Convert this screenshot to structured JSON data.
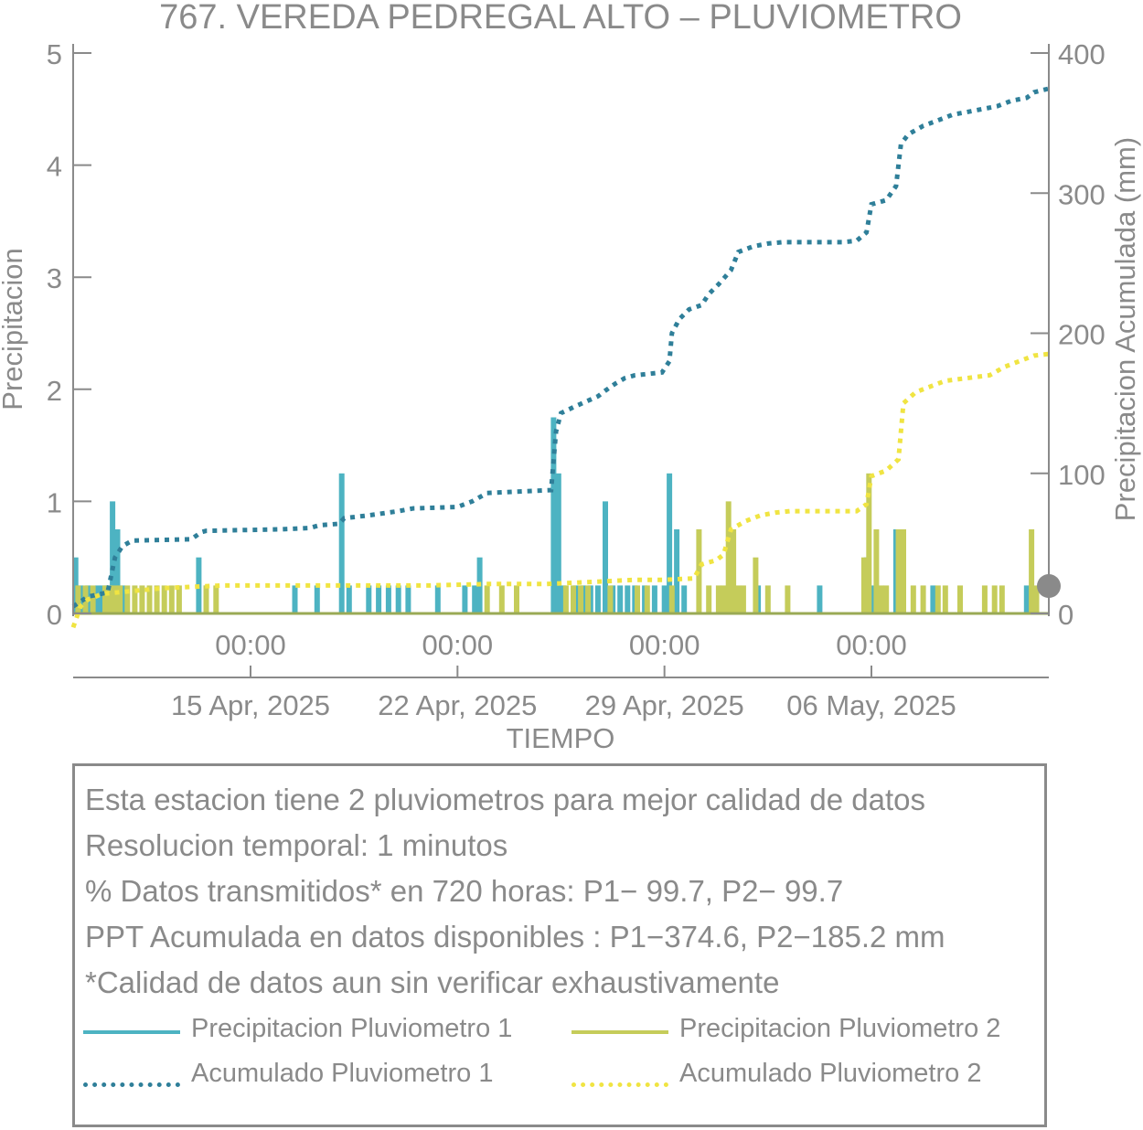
{
  "chart_data": {
    "type": "bar",
    "title": "767. VEREDA PEDREGAL ALTO – PLUVIOMETRO",
    "xlabel": "TIEMPO",
    "ylabel": "Precipitacion",
    "y2label": "Precipitacion Acumulada (mm)",
    "x_range": [
      "2025-04-09T00:00",
      "2025-05-12T00:00"
    ],
    "ylim": [
      0,
      5
    ],
    "y2lim": [
      0,
      400
    ],
    "y_ticks": [
      0,
      1,
      2,
      3,
      4,
      5
    ],
    "y2_ticks": [
      0,
      100,
      200,
      300,
      400
    ],
    "x_ticks": [
      {
        "date": "2025-04-15T00:00",
        "label": "00:00",
        "sublabel": "15 Apr, 2025"
      },
      {
        "date": "2025-04-22T00:00",
        "label": "00:00",
        "sublabel": "22 Apr, 2025"
      },
      {
        "date": "2025-04-29T00:00",
        "label": "00:00",
        "sublabel": "29 Apr, 2025"
      },
      {
        "date": "2025-05-06T00:00",
        "label": "00:00",
        "sublabel": "06 May, 2025"
      }
    ],
    "grid": false,
    "colors": {
      "p1_bar": "#4db3c2",
      "p2_bar": "#c5cc5a",
      "p1_cum": "#2f7f99",
      "p2_cum": "#f0e442",
      "axis": "#8a8a8a"
    },
    "series": [
      {
        "name": "Precipitacion Pluviometro 1",
        "kind": "bars",
        "axis": "left",
        "points": [
          [
            "2025-04-09T02:00",
            0.5
          ],
          [
            "2025-04-09T06:00",
            0.25
          ],
          [
            "2025-04-09T12:00",
            0.25
          ],
          [
            "2025-04-09T20:00",
            0.25
          ],
          [
            "2025-04-10T00:00",
            0.25
          ],
          [
            "2025-04-10T04:00",
            0.25
          ],
          [
            "2025-04-10T08:00",
            1.0
          ],
          [
            "2025-04-10T12:00",
            0.75
          ],
          [
            "2025-04-10T16:00",
            0.25
          ],
          [
            "2025-04-13T06:00",
            0.5
          ],
          [
            "2025-04-13T12:00",
            0.25
          ],
          [
            "2025-04-15T00:00",
            0.0
          ],
          [
            "2025-04-16T12:00",
            0.25
          ],
          [
            "2025-04-17T06:00",
            0.25
          ],
          [
            "2025-04-18T02:00",
            1.25
          ],
          [
            "2025-04-18T08:00",
            0.25
          ],
          [
            "2025-04-19T00:00",
            0.25
          ],
          [
            "2025-04-19T08:00",
            0.25
          ],
          [
            "2025-04-19T16:00",
            0.25
          ],
          [
            "2025-04-20T00:00",
            0.25
          ],
          [
            "2025-04-20T08:00",
            0.25
          ],
          [
            "2025-04-21T08:00",
            0.25
          ],
          [
            "2025-04-22T06:00",
            0.25
          ],
          [
            "2025-04-22T14:00",
            0.25
          ],
          [
            "2025-04-22T18:00",
            0.5
          ],
          [
            "2025-04-25T06:00",
            1.75
          ],
          [
            "2025-04-25T10:00",
            1.25
          ],
          [
            "2025-04-25T14:00",
            0.25
          ],
          [
            "2025-04-26T00:00",
            0.25
          ],
          [
            "2025-04-26T06:00",
            0.25
          ],
          [
            "2025-04-26T12:00",
            0.25
          ],
          [
            "2025-04-26T18:00",
            0.25
          ],
          [
            "2025-04-27T00:00",
            1.0
          ],
          [
            "2025-04-27T06:00",
            0.25
          ],
          [
            "2025-04-27T12:00",
            0.25
          ],
          [
            "2025-04-27T18:00",
            0.25
          ],
          [
            "2025-04-28T00:00",
            0.25
          ],
          [
            "2025-04-28T08:00",
            0.25
          ],
          [
            "2025-04-28T16:00",
            0.25
          ],
          [
            "2025-04-29T00:00",
            0.25
          ],
          [
            "2025-04-29T04:00",
            1.25
          ],
          [
            "2025-04-29T10:00",
            0.75
          ],
          [
            "2025-04-29T16:00",
            0.25
          ],
          [
            "2025-05-02T04:00",
            0.25
          ],
          [
            "2025-05-04T06:00",
            0.25
          ],
          [
            "2025-05-05T20:00",
            0.5
          ],
          [
            "2025-05-06T00:00",
            0.25
          ],
          [
            "2025-05-06T20:00",
            0.75
          ],
          [
            "2025-05-08T02:00",
            0.25
          ],
          [
            "2025-05-11T06:00",
            0.25
          ]
        ]
      },
      {
        "name": "Precipitacion Pluviometro 2",
        "kind": "bars",
        "axis": "left",
        "points": [
          [
            "2025-04-09T04:00",
            0.25
          ],
          [
            "2025-04-09T10:00",
            0.25
          ],
          [
            "2025-04-09T16:00",
            0.25
          ],
          [
            "2025-04-10T02:00",
            0.25
          ],
          [
            "2025-04-10T06:00",
            0.25
          ],
          [
            "2025-04-10T10:00",
            0.25
          ],
          [
            "2025-04-10T14:00",
            0.25
          ],
          [
            "2025-04-10T20:00",
            0.25
          ],
          [
            "2025-04-11T02:00",
            0.25
          ],
          [
            "2025-04-11T08:00",
            0.25
          ],
          [
            "2025-04-11T14:00",
            0.25
          ],
          [
            "2025-04-11T20:00",
            0.25
          ],
          [
            "2025-04-12T02:00",
            0.25
          ],
          [
            "2025-04-12T08:00",
            0.25
          ],
          [
            "2025-04-12T14:00",
            0.25
          ],
          [
            "2025-04-13T12:00",
            0.25
          ],
          [
            "2025-04-13T20:00",
            0.25
          ],
          [
            "2025-04-23T00:00",
            0.25
          ],
          [
            "2025-04-23T12:00",
            0.25
          ],
          [
            "2025-04-24T00:00",
            0.25
          ],
          [
            "2025-04-25T16:00",
            0.25
          ],
          [
            "2025-04-25T22:00",
            0.25
          ],
          [
            "2025-04-26T04:00",
            0.25
          ],
          [
            "2025-04-26T10:00",
            0.25
          ],
          [
            "2025-04-27T04:00",
            0.25
          ],
          [
            "2025-04-28T02:00",
            0.25
          ],
          [
            "2025-04-28T10:00",
            0.25
          ],
          [
            "2025-04-29T06:00",
            0.25
          ],
          [
            "2025-04-30T04:00",
            0.75
          ],
          [
            "2025-04-30T12:00",
            0.25
          ],
          [
            "2025-04-30T20:00",
            0.25
          ],
          [
            "2025-05-01T00:00",
            0.25
          ],
          [
            "2025-05-01T04:00",
            1.0
          ],
          [
            "2025-05-01T08:00",
            0.75
          ],
          [
            "2025-05-01T12:00",
            0.25
          ],
          [
            "2025-05-01T16:00",
            0.25
          ],
          [
            "2025-05-02T02:00",
            0.5
          ],
          [
            "2025-05-02T12:00",
            0.25
          ],
          [
            "2025-05-03T04:00",
            0.25
          ],
          [
            "2025-05-05T18:00",
            0.5
          ],
          [
            "2025-05-05T22:00",
            1.25
          ],
          [
            "2025-05-06T04:00",
            0.75
          ],
          [
            "2025-05-06T08:00",
            0.25
          ],
          [
            "2025-05-06T12:00",
            0.25
          ],
          [
            "2025-05-06T22:00",
            0.75
          ],
          [
            "2025-05-07T02:00",
            0.75
          ],
          [
            "2025-05-07T10:00",
            0.25
          ],
          [
            "2025-05-07T18:00",
            0.25
          ],
          [
            "2025-05-08T06:00",
            0.25
          ],
          [
            "2025-05-08T12:00",
            0.25
          ],
          [
            "2025-05-09T00:00",
            0.25
          ],
          [
            "2025-05-09T20:00",
            0.25
          ],
          [
            "2025-05-10T04:00",
            0.25
          ],
          [
            "2025-05-10T10:00",
            0.25
          ],
          [
            "2025-05-11T10:00",
            0.75
          ],
          [
            "2025-05-11T14:00",
            0.25
          ]
        ]
      },
      {
        "name": "Acumulado Pluviometro 1",
        "kind": "line",
        "axis": "right",
        "points": [
          [
            "2025-04-09T00:00",
            5
          ],
          [
            "2025-04-09T12:00",
            12
          ],
          [
            "2025-04-10T04:00",
            15
          ],
          [
            "2025-04-10T10:00",
            40
          ],
          [
            "2025-04-10T16:00",
            48
          ],
          [
            "2025-04-11T00:00",
            52
          ],
          [
            "2025-04-13T00:00",
            53
          ],
          [
            "2025-04-13T08:00",
            58
          ],
          [
            "2025-04-13T12:00",
            59
          ],
          [
            "2025-04-16T00:00",
            60
          ],
          [
            "2025-04-17T00:00",
            61
          ],
          [
            "2025-04-17T08:00",
            63
          ],
          [
            "2025-04-18T00:00",
            64
          ],
          [
            "2025-04-18T04:00",
            68
          ],
          [
            "2025-04-19T00:00",
            70
          ],
          [
            "2025-04-20T00:00",
            73
          ],
          [
            "2025-04-20T12:00",
            75
          ],
          [
            "2025-04-22T00:00",
            76
          ],
          [
            "2025-04-22T12:00",
            80
          ],
          [
            "2025-04-23T00:00",
            86
          ],
          [
            "2025-04-25T04:00",
            88
          ],
          [
            "2025-04-25T08:00",
            130
          ],
          [
            "2025-04-25T12:00",
            143
          ],
          [
            "2025-04-26T00:00",
            148
          ],
          [
            "2025-04-26T18:00",
            155
          ],
          [
            "2025-04-27T00:00",
            159
          ],
          [
            "2025-04-27T08:00",
            164
          ],
          [
            "2025-04-27T16:00",
            168
          ],
          [
            "2025-04-28T00:00",
            170
          ],
          [
            "2025-04-28T22:00",
            172
          ],
          [
            "2025-04-29T04:00",
            180
          ],
          [
            "2025-04-29T06:00",
            200
          ],
          [
            "2025-04-29T12:00",
            210
          ],
          [
            "2025-04-29T20:00",
            217
          ],
          [
            "2025-04-30T06:00",
            220
          ],
          [
            "2025-04-30T12:00",
            228
          ],
          [
            "2025-04-30T20:00",
            235
          ],
          [
            "2025-05-01T06:00",
            245
          ],
          [
            "2025-05-01T12:00",
            258
          ],
          [
            "2025-05-02T00:00",
            262
          ],
          [
            "2025-05-02T12:00",
            264
          ],
          [
            "2025-05-03T00:00",
            265
          ],
          [
            "2025-05-05T00:00",
            265
          ],
          [
            "2025-05-05T12:00",
            266
          ],
          [
            "2025-05-05T20:00",
            272
          ],
          [
            "2025-05-06T00:00",
            292
          ],
          [
            "2025-05-06T12:00",
            295
          ],
          [
            "2025-05-06T20:00",
            305
          ],
          [
            "2025-05-07T00:00",
            335
          ],
          [
            "2025-05-07T06:00",
            342
          ],
          [
            "2025-05-07T18:00",
            348
          ],
          [
            "2025-05-08T06:00",
            352
          ],
          [
            "2025-05-08T18:00",
            356
          ],
          [
            "2025-05-09T06:00",
            358
          ],
          [
            "2025-05-09T18:00",
            360
          ],
          [
            "2025-05-10T06:00",
            362
          ],
          [
            "2025-05-10T18:00",
            366
          ],
          [
            "2025-05-11T06:00",
            368
          ],
          [
            "2025-05-11T12:00",
            372
          ],
          [
            "2025-05-12T00:00",
            374.6
          ]
        ]
      },
      {
        "name": "Acumulado Pluviometro 2",
        "kind": "line",
        "axis": "right",
        "points": [
          [
            "2025-04-09T00:00",
            -10
          ],
          [
            "2025-04-09T06:00",
            5
          ],
          [
            "2025-04-09T12:00",
            10
          ],
          [
            "2025-04-10T00:00",
            14
          ],
          [
            "2025-04-11T00:00",
            16
          ],
          [
            "2025-04-12T00:00",
            18
          ],
          [
            "2025-04-13T00:00",
            19
          ],
          [
            "2025-04-14T00:00",
            20
          ],
          [
            "2025-04-15T00:00",
            20
          ],
          [
            "2025-04-18T00:00",
            20
          ],
          [
            "2025-04-21T00:00",
            20
          ],
          [
            "2025-04-23T00:00",
            21
          ],
          [
            "2025-04-25T00:00",
            21
          ],
          [
            "2025-04-26T00:00",
            22
          ],
          [
            "2025-04-27T00:00",
            23
          ],
          [
            "2025-04-28T00:00",
            24
          ],
          [
            "2025-04-29T00:00",
            24
          ],
          [
            "2025-04-30T00:00",
            25
          ],
          [
            "2025-04-30T06:00",
            35
          ],
          [
            "2025-04-30T18:00",
            38
          ],
          [
            "2025-05-01T00:00",
            42
          ],
          [
            "2025-05-01T06:00",
            60
          ],
          [
            "2025-05-01T18:00",
            66
          ],
          [
            "2025-05-02T06:00",
            70
          ],
          [
            "2025-05-02T18:00",
            72
          ],
          [
            "2025-05-03T06:00",
            73
          ],
          [
            "2025-05-05T12:00",
            73
          ],
          [
            "2025-05-05T20:00",
            78
          ],
          [
            "2025-05-06T00:00",
            98
          ],
          [
            "2025-05-06T12:00",
            102
          ],
          [
            "2025-05-06T22:00",
            110
          ],
          [
            "2025-05-07T02:00",
            150
          ],
          [
            "2025-05-07T12:00",
            158
          ],
          [
            "2025-05-08T00:00",
            162
          ],
          [
            "2025-05-08T12:00",
            166
          ],
          [
            "2025-05-09T06:00",
            168
          ],
          [
            "2025-05-10T00:00",
            170
          ],
          [
            "2025-05-10T12:00",
            176
          ],
          [
            "2025-05-11T00:00",
            180
          ],
          [
            "2025-05-11T12:00",
            184
          ],
          [
            "2025-05-12T00:00",
            185.2
          ]
        ]
      }
    ]
  },
  "info": {
    "lines": [
      "Esta estacion tiene 2 pluviometros para mejor calidad de datos",
      "Resolucion temporal: 1 minutos",
      "% Datos transmitidos* en 720 horas: P1− 99.7, P2− 99.7",
      "PPT Acumulada en datos disponibles : P1−374.6, P2−185.2 mm",
      "*Calidad de datos aun sin verificar exhaustivamente"
    ]
  },
  "legend": {
    "items": [
      {
        "label": "Precipitacion Pluviometro 1",
        "style": "solid",
        "color": "#4db3c2"
      },
      {
        "label": "Precipitacion Pluviometro 2",
        "style": "solid",
        "color": "#c5cc5a"
      },
      {
        "label": "Acumulado Pluviometro 1",
        "style": "dotted",
        "color": "#2f7f99"
      },
      {
        "label": "Acumulado Pluviometro 2",
        "style": "dotted",
        "color": "#f0e442"
      }
    ]
  }
}
